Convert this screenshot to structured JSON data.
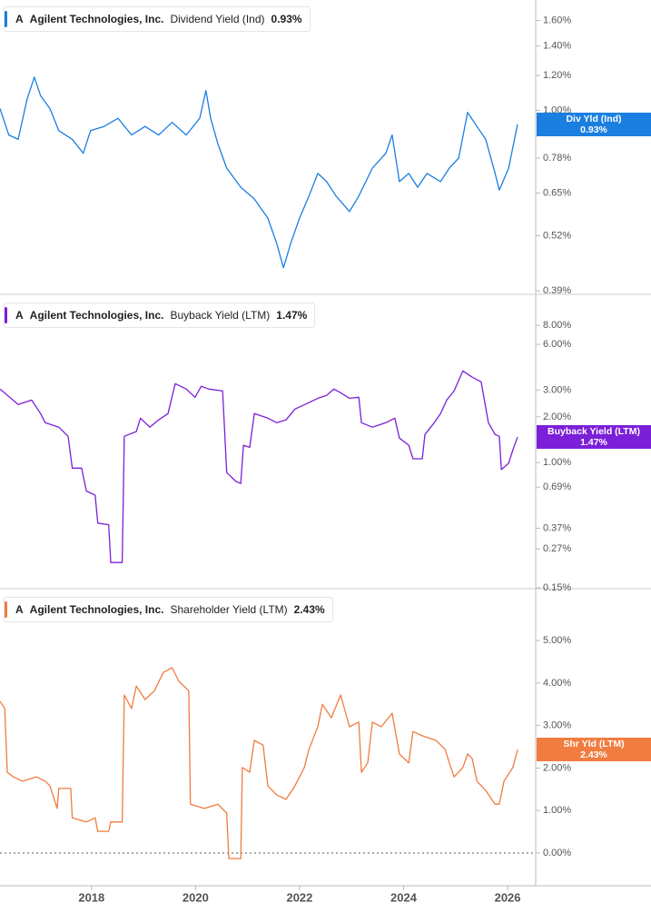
{
  "chart_data": [
    {
      "type": "line",
      "ticker": "A",
      "company": "Agilent Technologies, Inc.",
      "title": "Dividend Yield (Ind)",
      "tag": "Div Yld (Ind)",
      "current": {
        "value": 0.93,
        "label": "0.93%"
      },
      "log_scale": true,
      "xlim": [
        2016.24,
        2026.54
      ],
      "ylim": [
        0.383,
        1.78
      ],
      "yticks": [
        {
          "value": 0.39,
          "label": "0.39%"
        },
        {
          "value": 0.52,
          "label": "0.52%"
        },
        {
          "value": 0.65,
          "label": "0.65%"
        },
        {
          "value": 0.78,
          "label": "0.78%"
        },
        {
          "value": 1.0,
          "label": "1.00%"
        },
        {
          "value": 1.2,
          "label": "1.20%"
        },
        {
          "value": 1.4,
          "label": "1.40%"
        },
        {
          "value": 1.6,
          "label": "1.60%"
        }
      ],
      "x": [
        2016.24,
        2016.41,
        2016.59,
        2016.76,
        2016.9,
        2017.02,
        2017.2,
        2017.37,
        2017.63,
        2017.84,
        2017.98,
        2018.24,
        2018.51,
        2018.77,
        2019.03,
        2019.29,
        2019.55,
        2019.82,
        2020.08,
        2020.2,
        2020.29,
        2020.43,
        2020.6,
        2020.87,
        2021.13,
        2021.39,
        2021.56,
        2021.69,
        2021.83,
        2022.0,
        2022.18,
        2022.35,
        2022.52,
        2022.7,
        2022.96,
        2023.14,
        2023.4,
        2023.66,
        2023.78,
        2023.92,
        2024.1,
        2024.27,
        2024.45,
        2024.71,
        2024.88,
        2025.06,
        2025.23,
        2025.41,
        2025.58,
        2025.76,
        2025.84,
        2026.02,
        2026.19
      ],
      "series": [
        {
          "name": "Dividend Yield (Ind)",
          "color": "#1a7fe0",
          "values": [
            1.01,
            0.88,
            0.86,
            1.06,
            1.19,
            1.08,
            1.01,
            0.9,
            0.86,
            0.8,
            0.9,
            0.92,
            0.96,
            0.88,
            0.92,
            0.88,
            0.94,
            0.88,
            0.96,
            1.11,
            0.96,
            0.84,
            0.74,
            0.67,
            0.63,
            0.57,
            0.5,
            0.44,
            0.5,
            0.57,
            0.64,
            0.72,
            0.69,
            0.64,
            0.59,
            0.64,
            0.74,
            0.8,
            0.88,
            0.69,
            0.72,
            0.67,
            0.72,
            0.69,
            0.74,
            0.78,
            0.99,
            0.92,
            0.86,
            0.72,
            0.66,
            0.74,
            0.93
          ]
        }
      ]
    },
    {
      "type": "line",
      "ticker": "A",
      "company": "Agilent Technologies, Inc.",
      "title": "Buyback Yield (LTM)",
      "tag": "Buyback Yield (LTM)",
      "current": {
        "value": 1.47,
        "label": "1.47%"
      },
      "log_scale": true,
      "xlim": [
        2016.24,
        2026.54
      ],
      "ylim": [
        0.148,
        12.8
      ],
      "yticks": [
        {
          "value": 0.15,
          "label": "0.15%"
        },
        {
          "value": 0.27,
          "label": "0.27%"
        },
        {
          "value": 0.37,
          "label": "0.37%"
        },
        {
          "value": 0.69,
          "label": "0.69%"
        },
        {
          "value": 1.0,
          "label": "1.00%"
        },
        {
          "value": 2.0,
          "label": "2.00%"
        },
        {
          "value": 3.0,
          "label": "3.00%"
        },
        {
          "value": 6.0,
          "label": "6.00%"
        },
        {
          "value": 8.0,
          "label": "8.00%"
        }
      ],
      "x": [
        2016.24,
        2016.59,
        2016.85,
        2017.02,
        2017.11,
        2017.37,
        2017.55,
        2017.63,
        2017.81,
        2017.9,
        2018.07,
        2018.12,
        2018.33,
        2018.37,
        2018.59,
        2018.63,
        2018.86,
        2018.94,
        2019.12,
        2019.29,
        2019.47,
        2019.61,
        2019.82,
        2019.99,
        2020.11,
        2020.25,
        2020.52,
        2020.6,
        2020.78,
        2020.87,
        2020.92,
        2021.04,
        2021.13,
        2021.39,
        2021.56,
        2021.74,
        2021.91,
        2022.18,
        2022.35,
        2022.52,
        2022.66,
        2022.79,
        2022.96,
        2023.14,
        2023.19,
        2023.4,
        2023.66,
        2023.83,
        2023.92,
        2024.1,
        2024.18,
        2024.36,
        2024.41,
        2024.59,
        2024.71,
        2024.83,
        2024.97,
        2025.14,
        2025.32,
        2025.49,
        2025.63,
        2025.76,
        2025.84,
        2025.88,
        2026.02,
        2026.1,
        2026.19
      ],
      "series": [
        {
          "name": "Buyback Yield (LTM)",
          "color": "#7b1fd8",
          "values": [
            3.05,
            2.41,
            2.58,
            2.1,
            1.83,
            1.71,
            1.49,
            0.92,
            0.92,
            0.65,
            0.61,
            0.4,
            0.39,
            0.22,
            0.22,
            1.49,
            1.6,
            1.96,
            1.71,
            1.91,
            2.1,
            3.31,
            3.05,
            2.69,
            3.18,
            3.05,
            2.96,
            0.86,
            0.75,
            0.73,
            1.3,
            1.26,
            2.1,
            1.96,
            1.83,
            1.91,
            2.25,
            2.48,
            2.65,
            2.77,
            3.05,
            2.88,
            2.65,
            2.69,
            1.83,
            1.71,
            1.83,
            1.96,
            1.45,
            1.3,
            1.06,
            1.06,
            1.53,
            1.83,
            2.1,
            2.58,
            2.96,
            4.01,
            3.65,
            3.4,
            1.83,
            1.53,
            1.49,
            0.9,
            0.99,
            1.21,
            1.47
          ]
        }
      ]
    },
    {
      "type": "line",
      "ticker": "A",
      "company": "Agilent Technologies, Inc.",
      "title": "Shareholder Yield (LTM)",
      "tag": "Shr Yld (LTM)",
      "current": {
        "value": 2.43,
        "label": "2.43%"
      },
      "log_scale": false,
      "zero_line": true,
      "xlim": [
        2016.24,
        2026.54
      ],
      "ylim": [
        -0.77,
        6.22
      ],
      "xticks": [
        2018,
        2020,
        2022,
        2024,
        2026
      ],
      "yticks": [
        {
          "value": 0,
          "label": "0.00%"
        },
        {
          "value": 1,
          "label": "1.00%"
        },
        {
          "value": 2,
          "label": "2.00%"
        },
        {
          "value": 3,
          "label": "3.00%"
        },
        {
          "value": 4,
          "label": "4.00%"
        },
        {
          "value": 5,
          "label": "5.00%"
        }
      ],
      "x": [
        2016.24,
        2016.33,
        2016.38,
        2016.5,
        2016.67,
        2016.94,
        2017.11,
        2017.2,
        2017.34,
        2017.37,
        2017.6,
        2017.63,
        2017.9,
        2018.07,
        2018.12,
        2018.33,
        2018.37,
        2018.59,
        2018.63,
        2018.77,
        2018.86,
        2019.03,
        2019.21,
        2019.38,
        2019.55,
        2019.68,
        2019.87,
        2019.9,
        2020.17,
        2020.43,
        2020.6,
        2020.64,
        2020.87,
        2020.9,
        2021.04,
        2021.13,
        2021.3,
        2021.39,
        2021.56,
        2021.74,
        2021.91,
        2022.09,
        2022.18,
        2022.35,
        2022.44,
        2022.61,
        2022.79,
        2022.96,
        2023.14,
        2023.19,
        2023.31,
        2023.4,
        2023.57,
        2023.78,
        2023.92,
        2024.1,
        2024.18,
        2024.36,
        2024.62,
        2024.8,
        2024.88,
        2024.97,
        2025.14,
        2025.23,
        2025.32,
        2025.41,
        2025.58,
        2025.76,
        2025.84,
        2025.93,
        2026.1,
        2026.19
      ],
      "series": [
        {
          "name": "Shareholder Yield (LTM)",
          "color": "#f07c3f",
          "values": [
            3.57,
            3.4,
            1.9,
            1.79,
            1.69,
            1.79,
            1.69,
            1.58,
            1.05,
            1.52,
            1.52,
            0.83,
            0.73,
            0.83,
            0.51,
            0.51,
            0.73,
            0.73,
            3.72,
            3.4,
            3.93,
            3.61,
            3.82,
            4.25,
            4.36,
            4.04,
            3.82,
            1.15,
            1.05,
            1.15,
            0.94,
            -0.13,
            -0.13,
            2.01,
            1.9,
            2.65,
            2.54,
            1.58,
            1.37,
            1.26,
            1.58,
            2.01,
            2.44,
            2.97,
            3.5,
            3.18,
            3.72,
            2.97,
            3.08,
            1.9,
            2.12,
            3.08,
            2.97,
            3.29,
            2.33,
            2.12,
            2.86,
            2.76,
            2.65,
            2.44,
            2.12,
            1.79,
            2.01,
            2.33,
            2.22,
            1.69,
            1.47,
            1.15,
            1.15,
            1.69,
            2.01,
            2.43
          ]
        }
      ]
    }
  ]
}
